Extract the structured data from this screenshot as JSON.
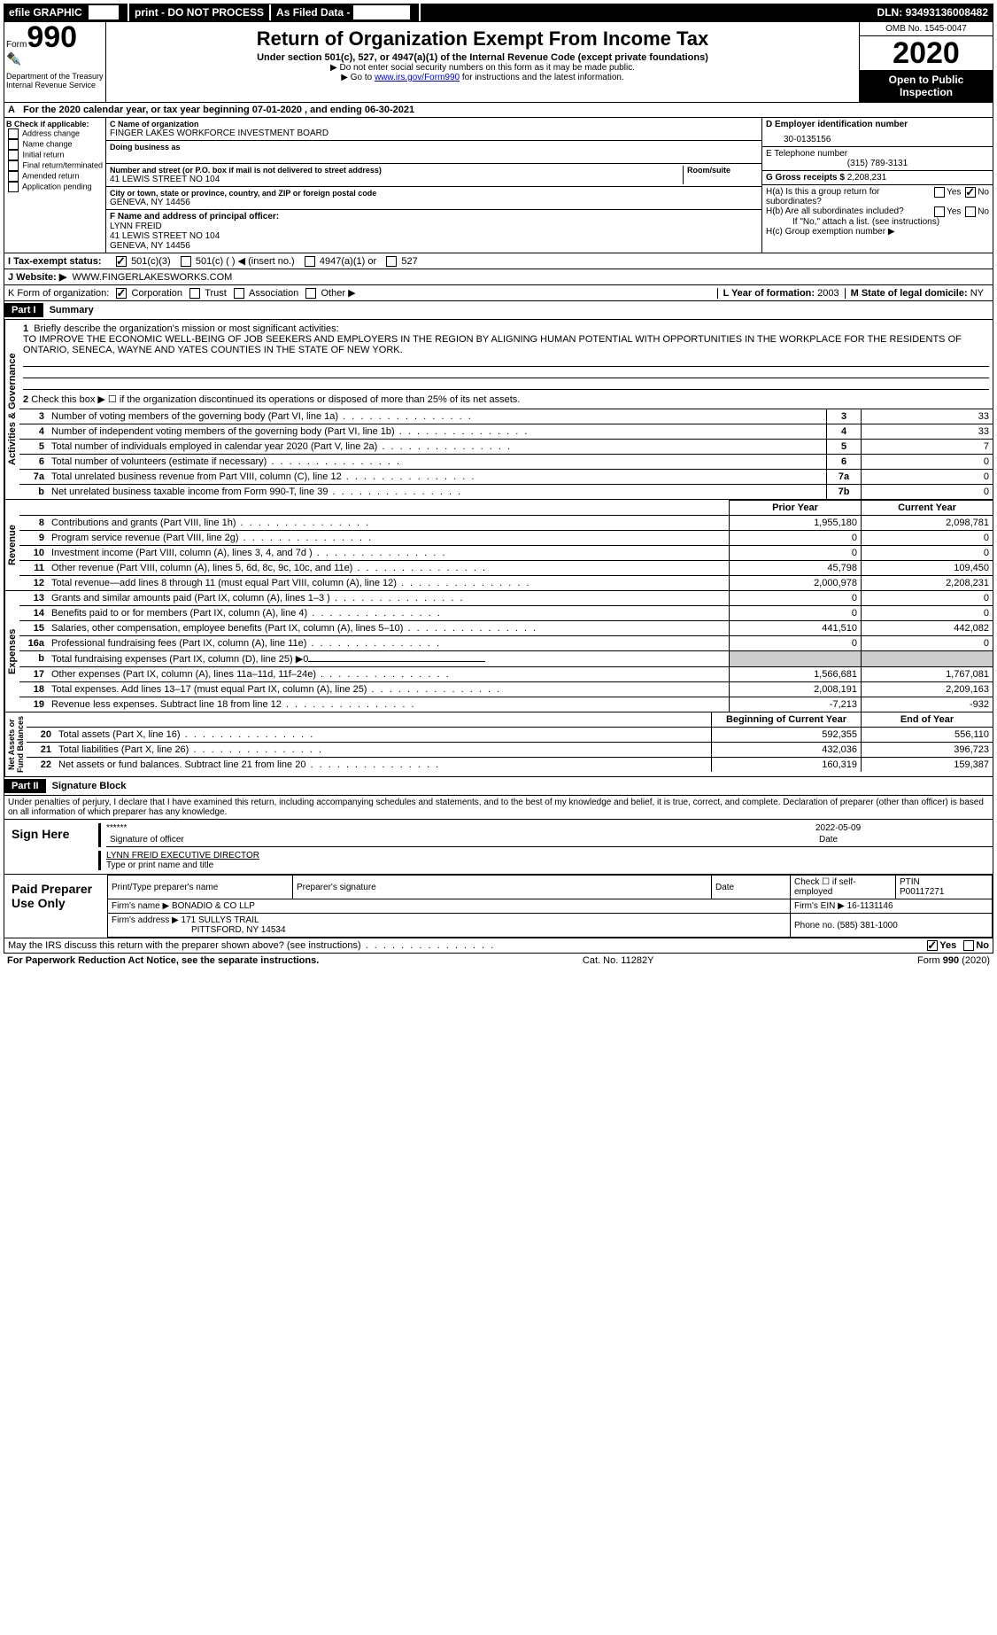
{
  "topbar": {
    "efile": "efile GRAPHIC",
    "print": "print - DO NOT PROCESS",
    "asfiled": "As Filed Data -",
    "dln_label": "DLN:",
    "dln": "93493136008482"
  },
  "header": {
    "form": "Form",
    "form_num": "990",
    "dept": "Department of the Treasury\nInternal Revenue Service",
    "title": "Return of Organization Exempt From Income Tax",
    "sub1": "Under section 501(c), 527, or 4947(a)(1) of the Internal Revenue Code (except private foundations)",
    "sub2": "▶ Do not enter social security numbers on this form as it may be made public.",
    "sub3_pre": "▶ Go to ",
    "sub3_link": "www.irs.gov/Form990",
    "sub3_post": " for instructions and the latest information.",
    "omb": "OMB No. 1545-0047",
    "year": "2020",
    "open": "Open to Public Inspection"
  },
  "rowA": {
    "prefix": "A",
    "text": "For the 2020 calendar year, or tax year beginning 07-01-2020   , and ending 06-30-2021"
  },
  "colB": {
    "label": "B Check if applicable:",
    "items": [
      "Address change",
      "Name change",
      "Initial return",
      "Final return/terminated",
      "Amended return",
      "Application pending"
    ]
  },
  "colC": {
    "name_lbl": "C Name of organization",
    "name": "FINGER LAKES WORKFORCE INVESTMENT BOARD",
    "dba_lbl": "Doing business as",
    "addr_lbl": "Number and street (or P.O. box if mail is not delivered to street address)",
    "room_lbl": "Room/suite",
    "addr": "41 LEWIS STREET NO 104",
    "city_lbl": "City or town, state or province, country, and ZIP or foreign postal code",
    "city": "GENEVA, NY  14456",
    "f_lbl": "F  Name and address of principal officer:",
    "f_name": "LYNN FREID",
    "f_addr1": "41 LEWIS STREET NO 104",
    "f_addr2": "GENEVA, NY  14456"
  },
  "colD": {
    "ein_lbl": "D Employer identification number",
    "ein": "30-0135156",
    "tel_lbl": "E Telephone number",
    "tel": "(315) 789-3131",
    "gross_lbl": "G Gross receipts $",
    "gross": "2,208,231",
    "ha": "H(a)  Is this a group return for subordinates?",
    "hb": "H(b)  Are all subordinates included?",
    "hnote": "If \"No,\" attach a list. (see instructions)",
    "hc": "H(c)  Group exemption number ▶"
  },
  "rowI": {
    "label": "I   Tax-exempt status:",
    "opts": [
      "501(c)(3)",
      "501(c) (  ) ◀ (insert no.)",
      "4947(a)(1) or",
      "527"
    ]
  },
  "rowJ": {
    "label": "J   Website: ▶",
    "val": "WWW.FINGERLAKESWORKS.COM"
  },
  "rowK": {
    "label": "K Form of organization:",
    "opts": [
      "Corporation",
      "Trust",
      "Association",
      "Other ▶"
    ],
    "L_lbl": "L Year of formation:",
    "L_val": "2003",
    "M_lbl": "M State of legal domicile:",
    "M_val": "NY"
  },
  "part1": {
    "header": "Part I",
    "title": "Summary",
    "line1_lbl": "1",
    "line1_text": "Briefly describe the organization's mission or most significant activities:",
    "mission": "TO IMPROVE THE ECONOMIC WELL-BEING OF JOB SEEKERS AND EMPLOYERS IN THE REGION BY ALIGNING HUMAN POTENTIAL WITH OPPORTUNITIES IN THE WORKPLACE FOR THE RESIDENTS OF ONTARIO, SENECA, WAYNE AND YATES COUNTIES IN THE STATE OF NEW YORK.",
    "line2": "Check this box ▶ ☐ if the organization discontinued its operations or disposed of more than 25% of its net assets.",
    "gov_rows": [
      {
        "n": "3",
        "t": "Number of voting members of the governing body (Part VI, line 1a)",
        "b": "3",
        "v": "33"
      },
      {
        "n": "4",
        "t": "Number of independent voting members of the governing body (Part VI, line 1b)",
        "b": "4",
        "v": "33"
      },
      {
        "n": "5",
        "t": "Total number of individuals employed in calendar year 2020 (Part V, line 2a)",
        "b": "5",
        "v": "7"
      },
      {
        "n": "6",
        "t": "Total number of volunteers (estimate if necessary)",
        "b": "6",
        "v": "0"
      },
      {
        "n": "7a",
        "t": "Total unrelated business revenue from Part VIII, column (C), line 12",
        "b": "7a",
        "v": "0"
      },
      {
        "n": "b",
        "t": "Net unrelated business taxable income from Form 990-T, line 39",
        "b": "7b",
        "v": "0"
      }
    ],
    "pyh": "Prior Year",
    "cyh": "Current Year",
    "rev_rows": [
      {
        "n": "8",
        "t": "Contributions and grants (Part VIII, line 1h)",
        "py": "1,955,180",
        "cy": "2,098,781"
      },
      {
        "n": "9",
        "t": "Program service revenue (Part VIII, line 2g)",
        "py": "0",
        "cy": "0"
      },
      {
        "n": "10",
        "t": "Investment income (Part VIII, column (A), lines 3, 4, and 7d )",
        "py": "0",
        "cy": "0"
      },
      {
        "n": "11",
        "t": "Other revenue (Part VIII, column (A), lines 5, 6d, 8c, 9c, 10c, and 11e)",
        "py": "45,798",
        "cy": "109,450"
      },
      {
        "n": "12",
        "t": "Total revenue—add lines 8 through 11 (must equal Part VIII, column (A), line 12)",
        "py": "2,000,978",
        "cy": "2,208,231"
      }
    ],
    "exp_rows": [
      {
        "n": "13",
        "t": "Grants and similar amounts paid (Part IX, column (A), lines 1–3 )",
        "py": "0",
        "cy": "0"
      },
      {
        "n": "14",
        "t": "Benefits paid to or for members (Part IX, column (A), line 4)",
        "py": "0",
        "cy": "0"
      },
      {
        "n": "15",
        "t": "Salaries, other compensation, employee benefits (Part IX, column (A), lines 5–10)",
        "py": "441,510",
        "cy": "442,082"
      },
      {
        "n": "16a",
        "t": "Professional fundraising fees (Part IX, column (A), line 11e)",
        "py": "0",
        "cy": "0"
      },
      {
        "n": "b",
        "t": "Total fundraising expenses (Part IX, column (D), line 25) ▶0",
        "py": "",
        "cy": ""
      },
      {
        "n": "17",
        "t": "Other expenses (Part IX, column (A), lines 11a–11d, 11f–24e)",
        "py": "1,566,681",
        "cy": "1,767,081"
      },
      {
        "n": "18",
        "t": "Total expenses. Add lines 13–17 (must equal Part IX, column (A), line 25)",
        "py": "2,008,191",
        "cy": "2,209,163"
      },
      {
        "n": "19",
        "t": "Revenue less expenses. Subtract line 18 from line 12",
        "py": "-7,213",
        "cy": "-932"
      }
    ],
    "byh": "Beginning of Current Year",
    "eyh": "End of Year",
    "net_rows": [
      {
        "n": "20",
        "t": "Total assets (Part X, line 16)",
        "py": "592,355",
        "cy": "556,110"
      },
      {
        "n": "21",
        "t": "Total liabilities (Part X, line 26)",
        "py": "432,036",
        "cy": "396,723"
      },
      {
        "n": "22",
        "t": "Net assets or fund balances. Subtract line 21 from line 20",
        "py": "160,319",
        "cy": "159,387"
      }
    ]
  },
  "part2": {
    "header": "Part II",
    "title": "Signature Block",
    "decl": "Under penalties of perjury, I declare that I have examined this return, including accompanying schedules and statements, and to the best of my knowledge and belief, it is true, correct, and complete. Declaration of preparer (other than officer) is based on all information of which preparer has any knowledge.",
    "sign_here": "Sign Here",
    "stars": "******",
    "sig_officer": "Signature of officer",
    "date_lbl": "Date",
    "date": "2022-05-09",
    "name_title": "LYNN FREID  EXECUTIVE DIRECTOR",
    "type_name": "Type or print name and title",
    "paid": "Paid Preparer Use Only",
    "prep_name_lbl": "Print/Type preparer's name",
    "prep_sig_lbl": "Preparer's signature",
    "check_if": "Check ☐ if self-employed",
    "ptin_lbl": "PTIN",
    "ptin": "P00117271",
    "firm_name_lbl": "Firm's name   ▶",
    "firm_name": "BONADIO & CO LLP",
    "firm_ein_lbl": "Firm's EIN ▶",
    "firm_ein": "16-1131146",
    "firm_addr_lbl": "Firm's address ▶",
    "firm_addr1": "171 SULLYS TRAIL",
    "firm_addr2": "PITTSFORD, NY  14534",
    "phone_lbl": "Phone no.",
    "phone": "(585) 381-1000",
    "discuss": "May the IRS discuss this return with the preparer shown above? (see instructions)",
    "yes": "Yes",
    "no": "No"
  },
  "footer": {
    "left": "For Paperwork Reduction Act Notice, see the separate instructions.",
    "mid": "Cat. No. 11282Y",
    "right_pre": "Form ",
    "right_num": "990",
    "right_post": " (2020)"
  }
}
